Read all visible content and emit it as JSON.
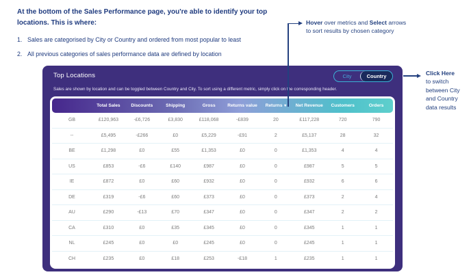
{
  "intro": {
    "heading": "At the bottom of the Sales Performance page, you're able to identify your top locations. This is where:",
    "items": [
      {
        "number": "1.",
        "text": "Sales are categorised by City or Country and ordered from most popular to least"
      },
      {
        "number": "2.",
        "text": "All previous categories of sales performance data are defined by location"
      }
    ]
  },
  "annotations": {
    "hover": {
      "word_bold_1": "Hover",
      "segment_1": " over metrics and ",
      "word_bold_2": "Select",
      "segment_2": " arrows",
      "line_2": "to sort results by chosen category"
    },
    "click_here": {
      "title": "Click Here",
      "line_1": "to switch",
      "line_2": "between City",
      "line_3": "and Country",
      "line_4": "data results"
    }
  },
  "panel": {
    "title": "Top Locations",
    "subtitle": "Sales are shown by location and can be toggled between Country and City. To sort using a different metric, simply click on the corresponding header.",
    "toggle": {
      "city_label": "City",
      "country_label": "Country",
      "selected": "Country"
    }
  },
  "table": {
    "headers": [
      "",
      "Total Sales",
      "Discounts",
      "Shipping",
      "Gross",
      "Returns value",
      "Returns",
      "Net Revenue",
      "Customers",
      "Orders"
    ],
    "sort": {
      "column": "Returns",
      "icon": "▾"
    },
    "rows": [
      [
        "GB",
        "£120,963",
        "-£6,726",
        "£3,830",
        "£118,068",
        "-£839",
        "20",
        "£117,228",
        "720",
        "790"
      ],
      [
        "--",
        "£5,495",
        "-£266",
        "£0",
        "£5,229",
        "-£91",
        "2",
        "£5,137",
        "28",
        "32"
      ],
      [
        "BE",
        "£1,298",
        "£0",
        "£55",
        "£1,353",
        "£0",
        "0",
        "£1,353",
        "4",
        "4"
      ],
      [
        "US",
        "£853",
        "-£6",
        "£140",
        "£987",
        "£0",
        "0",
        "£987",
        "5",
        "5"
      ],
      [
        "IE",
        "£872",
        "£0",
        "£60",
        "£932",
        "£0",
        "0",
        "£932",
        "6",
        "6"
      ],
      [
        "DE",
        "£319",
        "-£6",
        "£60",
        "£373",
        "£0",
        "0",
        "£373",
        "2",
        "4"
      ],
      [
        "AU",
        "£290",
        "-£13",
        "£70",
        "£347",
        "£0",
        "0",
        "£347",
        "2",
        "2"
      ],
      [
        "CA",
        "£310",
        "£0",
        "£35",
        "£345",
        "£0",
        "0",
        "£345",
        "1",
        "1"
      ],
      [
        "NL",
        "£245",
        "£0",
        "£0",
        "£245",
        "£0",
        "0",
        "£245",
        "1",
        "1"
      ],
      [
        "CH",
        "£235",
        "£0",
        "£18",
        "£253",
        "-£18",
        "1",
        "£235",
        "1",
        "1"
      ]
    ]
  },
  "colors": {
    "annotation_navy": "#23407f",
    "panel_background": "#3e2f7d",
    "header_gradient_start": "#46278c",
    "header_gradient_end": "#5ecfcc",
    "toggle_border": "#3ab2d6",
    "toggle_selected_background": "#1b2a5c",
    "toggle_city_text": "#46a8d8",
    "row_divider": "#e2f1f7",
    "table_text": "#7a7a7a"
  }
}
